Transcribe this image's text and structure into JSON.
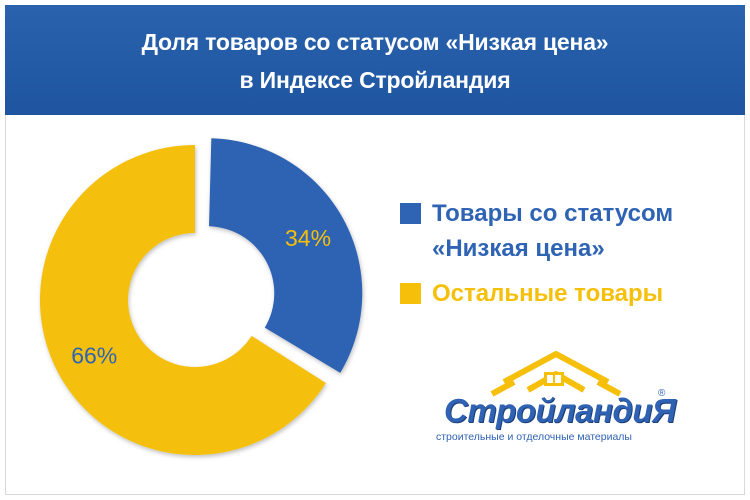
{
  "header": {
    "title_line1": "Доля товаров со статусом «Низкая цена»",
    "title_line2": "в Индексе Стройландия"
  },
  "chart_data": {
    "type": "pie",
    "variant": "donut",
    "categories": [
      "Товары со статусом «Низкая цена»",
      "Остальные товары"
    ],
    "values": [
      34,
      66
    ],
    "labels": [
      "34%",
      "66%"
    ],
    "colors": [
      "#2f63b3",
      "#f5bf0a"
    ],
    "label_colors": [
      "#f5bf0a",
      "#2f63b3"
    ],
    "legend_position": "right",
    "exploded_slice": "Товары со статусом «Низкая цена»"
  },
  "legend": {
    "items": [
      {
        "line1": "Товары со статусом",
        "line2": "«Низкая цена»",
        "color": "#2f63b3",
        "text_color": "#2f63b3"
      },
      {
        "line1": "Остальные товары",
        "line2": "",
        "color": "#f5bf0a",
        "text_color": "#f5bf0a"
      }
    ]
  },
  "logo": {
    "brand": "СтройландиЯ",
    "registered": "®",
    "tagline": "строительные и отделочные материалы",
    "roof_color": "#f5bf0a",
    "text_color": "#2f62b3"
  }
}
